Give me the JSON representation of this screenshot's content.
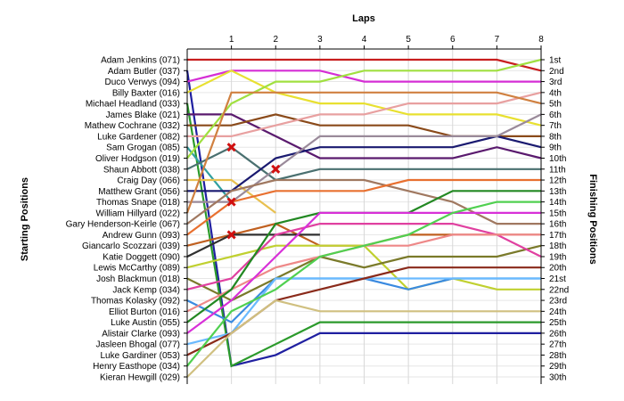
{
  "chart_data": {
    "type": "line",
    "subtype": "lap-position chart",
    "title": "",
    "xlabel": "Laps",
    "ylabel_left": "Starting Positions",
    "ylabel_right": "Finishing Positions",
    "x": [
      0,
      1,
      2,
      3,
      4,
      5,
      6,
      7,
      8
    ],
    "x_tick_labels": [
      "1",
      "2",
      "3",
      "4",
      "5",
      "6",
      "7",
      "8"
    ],
    "ylim": [
      1,
      30
    ],
    "y_inverted": true,
    "grid": true,
    "legend": "none",
    "starting_labels": [
      "Adam Jenkins (071)",
      "Adam Butler (037)",
      "Duco Verwys (094)",
      "Billy Baxter (016)",
      "Michael Headland (033)",
      "James Blake (021)",
      "Mathew Cochrane (032)",
      "Luke Gardener (082)",
      "Sam Grogan (085)",
      "Oliver Hodgson (019)",
      "Shaun Abbott (038)",
      "Craig Day (066)",
      "Matthew Grant (056)",
      "Thomas Snape (018)",
      "William Hillyard (022)",
      "Gary Henderson-Keirle (067)",
      "Andrew Gunn (093)",
      "Giancarlo Scozzari (039)",
      "Katie Doggett (090)",
      "Lewis McCarthy (089)",
      "Josh Blackmun (018)",
      "Jack Kemp (034)",
      "Thomas Kolasky (092)",
      "Elliot Burton (016)",
      "Luke Austin (055)",
      "Alistair Clarke (093)",
      "Jasleen Bhogal (077)",
      "Luke Gardiner (053)",
      "Henry Easthope (034)",
      "Kieran Hewgill (029)"
    ],
    "finishing_labels": [
      "1st",
      "2nd",
      "3rd",
      "4th",
      "5th",
      "6th",
      "7th",
      "8th",
      "9th",
      "10th",
      "11th",
      "12th",
      "13th",
      "14th",
      "15th",
      "16th",
      "17th",
      "18th",
      "19th",
      "20th",
      "21st",
      "22nd",
      "23rd",
      "24th",
      "25th",
      "26th",
      "27th",
      "28th",
      "29th",
      "30th"
    ],
    "series": [
      {
        "color": "#c81e1e",
        "values": [
          1,
          1,
          1,
          1,
          1,
          1,
          1,
          1,
          2
        ]
      },
      {
        "color": "#1f1fa0",
        "values": [
          2,
          29,
          28,
          26,
          26,
          26,
          26,
          26,
          26
        ]
      },
      {
        "color": "#d52ed5",
        "values": [
          3,
          2,
          2,
          2,
          3,
          3,
          3,
          3,
          3
        ]
      },
      {
        "color": "#e8e030",
        "values": [
          4,
          2,
          4,
          5,
          5,
          6,
          6,
          6,
          7
        ]
      },
      {
        "color": "#2b9a2b",
        "values": [
          5,
          29,
          27,
          25,
          25,
          25,
          25,
          25,
          25
        ]
      },
      {
        "color": "#5a1a6e",
        "values": [
          6,
          6,
          8,
          10,
          10,
          10,
          10,
          9,
          10
        ]
      },
      {
        "color": "#8a4a1a",
        "values": [
          7,
          7,
          6,
          7,
          7,
          7,
          8,
          8,
          8
        ]
      },
      {
        "color": "#e8a0a0",
        "values": [
          8,
          8,
          7,
          6,
          6,
          5,
          5,
          5,
          4
        ]
      },
      {
        "color": "#30a0a0",
        "values": [
          9,
          14,
          null,
          null,
          null,
          null,
          null,
          null,
          null
        ]
      },
      {
        "color": "#a0e040",
        "values": [
          10,
          5,
          3,
          3,
          2,
          2,
          2,
          2,
          1
        ]
      },
      {
        "color": "#4a7070",
        "values": [
          11,
          9,
          12,
          11,
          11,
          11,
          11,
          11,
          11
        ]
      },
      {
        "color": "#e8c050",
        "values": [
          12,
          12,
          15,
          null,
          null,
          null,
          null,
          null,
          null
        ]
      },
      {
        "color": "#1a1a70",
        "values": [
          13,
          13,
          10,
          9,
          9,
          9,
          9,
          8,
          9
        ]
      },
      {
        "color": "#9a8a9a",
        "values": [
          14,
          14,
          11,
          8,
          8,
          8,
          8,
          8,
          6
        ]
      },
      {
        "color": "#d08040",
        "values": [
          15,
          4,
          4,
          4,
          4,
          4,
          4,
          4,
          5
        ]
      },
      {
        "color": "#a07860",
        "values": [
          16,
          13,
          12,
          12,
          12,
          13,
          14,
          16,
          16
        ]
      },
      {
        "color": "#e87030",
        "values": [
          17,
          14,
          13,
          13,
          13,
          12,
          12,
          12,
          12
        ]
      },
      {
        "color": "#c06020",
        "values": [
          18,
          17,
          16,
          18,
          18,
          17,
          17,
          17,
          17
        ]
      },
      {
        "color": "#303030",
        "values": [
          19,
          17,
          17,
          17,
          null,
          null,
          null,
          null,
          null
        ]
      },
      {
        "color": "#c0d030",
        "values": [
          20,
          19,
          18,
          18,
          18,
          22,
          21,
          22,
          22
        ]
      },
      {
        "color": "#7a7a2a",
        "values": [
          21,
          23,
          21,
          19,
          20,
          19,
          19,
          19,
          18
        ]
      },
      {
        "color": "#e040a0",
        "values": [
          22,
          21,
          17,
          16,
          16,
          16,
          16,
          17,
          19
        ]
      },
      {
        "color": "#3a8ae0",
        "values": [
          23,
          25,
          21,
          21,
          21,
          22,
          21,
          21,
          21
        ]
      },
      {
        "color": "#ee8888",
        "values": [
          24,
          22,
          20,
          19,
          18,
          18,
          17,
          17,
          17
        ]
      },
      {
        "color": "#228822",
        "values": [
          25,
          22,
          16,
          15,
          15,
          15,
          13,
          13,
          13
        ]
      },
      {
        "color": "#d830d8",
        "values": [
          26,
          23,
          19,
          15,
          15,
          15,
          15,
          15,
          15
        ]
      },
      {
        "color": "#6abaff",
        "values": [
          27,
          26,
          21,
          21,
          21,
          21,
          21,
          21,
          21
        ]
      },
      {
        "color": "#8a2a1a",
        "values": [
          28,
          26,
          23,
          22,
          21,
          20,
          20,
          20,
          20
        ]
      },
      {
        "color": "#50d050",
        "values": [
          29,
          24,
          22,
          19,
          18,
          17,
          15,
          14,
          14
        ]
      },
      {
        "color": "#d0c080",
        "values": [
          30,
          26,
          23,
          24,
          24,
          24,
          24,
          24,
          24
        ]
      }
    ],
    "retirements": [
      {
        "lap": 1,
        "position": 9
      },
      {
        "lap": 2,
        "position": 11
      },
      {
        "lap": 1,
        "position": 14
      },
      {
        "lap": 1,
        "position": 17
      }
    ]
  }
}
